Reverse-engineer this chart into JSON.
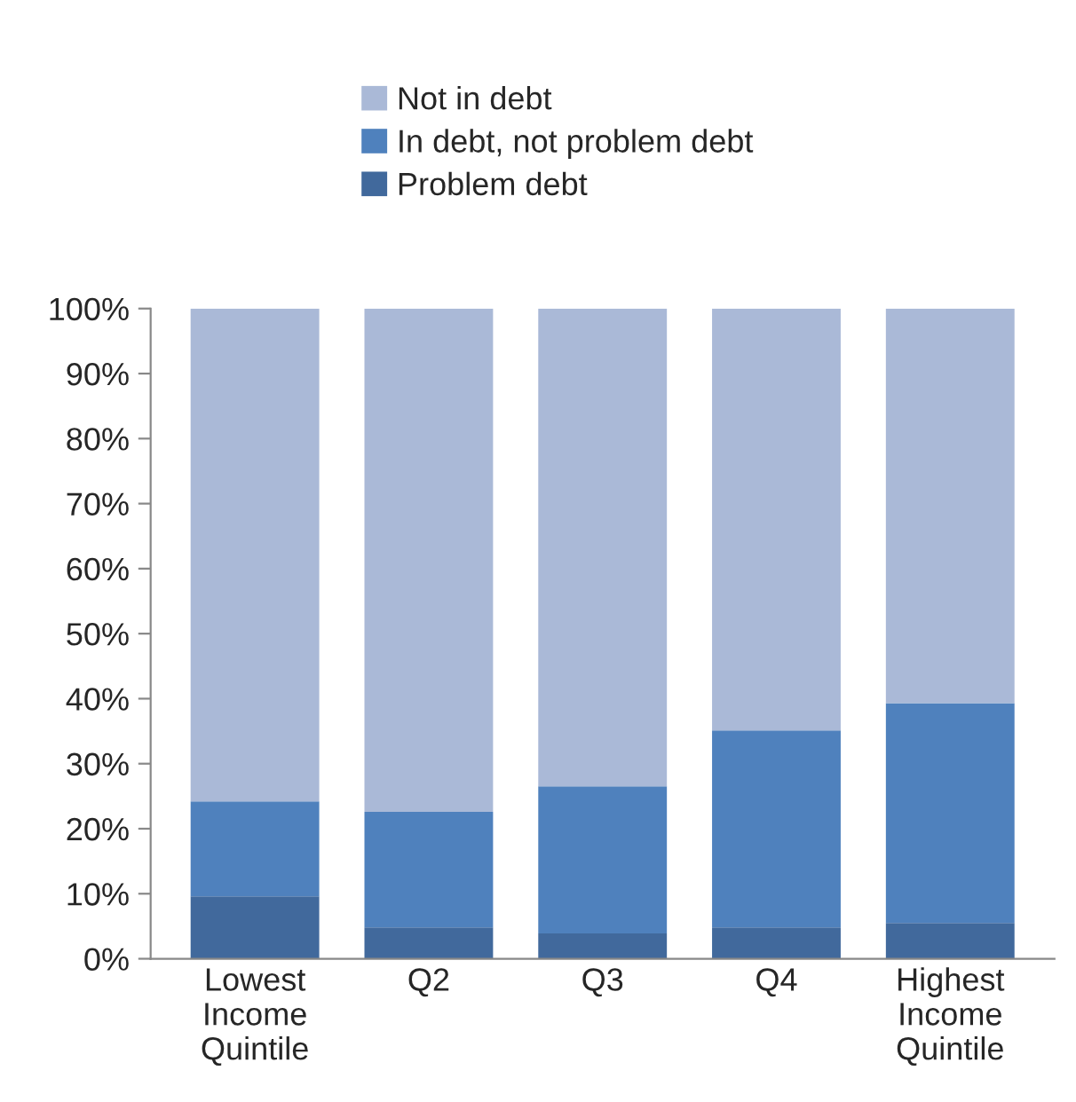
{
  "chart_data": {
    "type": "bar",
    "stacked": true,
    "categories": [
      "Lowest\nIncome\nQuintile",
      "Q2",
      "Q3",
      "Q4",
      "Highest\nIncome\nQuintile"
    ],
    "series": [
      {
        "name": "Problem debt",
        "color": "#41699c",
        "values": [
          9.6,
          4.8,
          3.9,
          4.8,
          5.5
        ]
      },
      {
        "name": "In debt, not problem debt",
        "color": "#4f81bd",
        "values": [
          14.6,
          17.8,
          22.6,
          30.3,
          33.8
        ]
      },
      {
        "name": "Not in debt",
        "color": "#aab9d7",
        "values": [
          75.8,
          77.4,
          73.5,
          64.9,
          60.7
        ]
      }
    ],
    "ylim": [
      0,
      100
    ],
    "yticks": [
      {
        "value": 0,
        "label": "0%"
      },
      {
        "value": 10,
        "label": "10%"
      },
      {
        "value": 20,
        "label": "20%"
      },
      {
        "value": 30,
        "label": "30%"
      },
      {
        "value": 40,
        "label": "40%"
      },
      {
        "value": 50,
        "label": "50%"
      },
      {
        "value": 60,
        "label": "60%"
      },
      {
        "value": 70,
        "label": "70%"
      },
      {
        "value": 80,
        "label": "80%"
      },
      {
        "value": 90,
        "label": "90%"
      },
      {
        "value": 100,
        "label": "100%"
      }
    ],
    "grid": false,
    "legend": "top"
  }
}
